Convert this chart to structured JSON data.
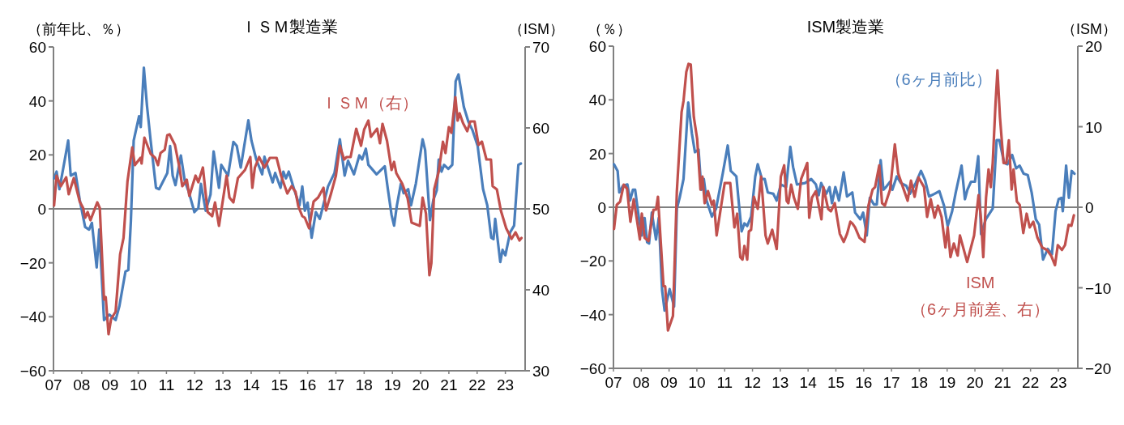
{
  "chart_data": [
    {
      "type": "line",
      "title": "ＩＳＭ製造業",
      "ylabel": "（前年比、％）",
      "y2label": "（ISM）",
      "xlim": [
        2007,
        2023.7
      ],
      "xticks": [
        {
          "value": 2007,
          "label": "07"
        },
        {
          "value": 2008,
          "label": "08"
        },
        {
          "value": 2009,
          "label": "09"
        },
        {
          "value": 2010,
          "label": "10"
        },
        {
          "value": 2011,
          "label": "11"
        },
        {
          "value": 2012,
          "label": "12"
        },
        {
          "value": 2013,
          "label": "13"
        },
        {
          "value": 2014,
          "label": "14"
        },
        {
          "value": 2015,
          "label": "15"
        },
        {
          "value": 2016,
          "label": "16"
        },
        {
          "value": 2017,
          "label": "17"
        },
        {
          "value": 2018,
          "label": "18"
        },
        {
          "value": 2019,
          "label": "19"
        },
        {
          "value": 2020,
          "label": "20"
        },
        {
          "value": 2021,
          "label": "21"
        },
        {
          "value": 2022,
          "label": "22"
        },
        {
          "value": 2023,
          "label": "23"
        }
      ],
      "ylim": [
        -60,
        60
      ],
      "yticks": [
        -60,
        -40,
        -20,
        0,
        20,
        40,
        60
      ],
      "y2lim": [
        30,
        70
      ],
      "y2ticks": [
        30,
        40,
        50,
        60,
        70
      ],
      "ref_lines": [
        {
          "axis": "y",
          "value": 0,
          "color": "#808080"
        }
      ],
      "series": [
        {
          "color": "#4a7ebb",
          "x": [
            2007.02,
            2007.11,
            2007.21,
            2007.35,
            2007.52,
            2007.61,
            2007.78,
            2007.93,
            2008.12,
            2008.26,
            2008.36,
            2008.53,
            2008.62,
            2008.79,
            2008.98,
            2009.2,
            2009.33,
            2009.55,
            2009.65,
            2009.74,
            2009.84,
            2010.03,
            2010.09,
            2010.2,
            2010.31,
            2010.44,
            2010.63,
            2010.74,
            2011.03,
            2011.13,
            2011.22,
            2011.32,
            2011.51,
            2011.65,
            2011.79,
            2011.99,
            2012.13,
            2012.22,
            2012.39,
            2012.56,
            2012.67,
            2012.86,
            2012.94,
            2013.18,
            2013.37,
            2013.49,
            2013.63,
            2013.9,
            2014.01,
            2014.18,
            2014.39,
            2014.47,
            2014.76,
            2014.85,
            2015.04,
            2015.14,
            2015.23,
            2015.33,
            2015.52,
            2015.71,
            2015.81,
            2015.9,
            2016.0,
            2016.14,
            2016.29,
            2016.43,
            2016.72,
            2016.95,
            2017.14,
            2017.31,
            2017.43,
            2017.64,
            2017.83,
            2017.93,
            2018.06,
            2018.15,
            2018.44,
            2018.73,
            2018.84,
            2018.97,
            2019.06,
            2019.16,
            2019.3,
            2019.4,
            2019.56,
            2019.66,
            2019.83,
            2020.07,
            2020.16,
            2020.33,
            2020.45,
            2020.57,
            2020.64,
            2020.74,
            2020.83,
            2020.98,
            2021.12,
            2021.24,
            2021.34,
            2021.53,
            2021.69,
            2021.83,
            2022.02,
            2022.21,
            2022.36,
            2022.5,
            2022.58,
            2022.64,
            2022.82,
            2022.9,
            2023.0,
            2023.17,
            2023.31,
            2023.46,
            2023.55
          ],
          "values": [
            11.3,
            13.8,
            7.3,
            15.3,
            25.3,
            12.3,
            13.3,
            3.3,
            -6.7,
            -7.7,
            -5.2,
            -21.7,
            -7.7,
            -41.2,
            -39.2,
            -41.2,
            -36.2,
            -23.2,
            -22.7,
            -4.7,
            25.3,
            34.3,
            30.3,
            52.3,
            38.3,
            25.3,
            7.8,
            7.3,
            13.3,
            23.3,
            12.3,
            8.8,
            19.8,
            10.3,
            6.3,
            -1.2,
            0.3,
            9.3,
            -0.7,
            5.3,
            21.3,
            7.8,
            16.3,
            12.3,
            24.8,
            23.3,
            15.3,
            32.8,
            25.3,
            18.3,
            12.8,
            19.3,
            9.8,
            13.3,
            7.8,
            13.8,
            11.3,
            13.8,
            7.3,
            1.3,
            8.3,
            -0.7,
            2.3,
            -10.7,
            -1.2,
            -3.7,
            8.3,
            13.3,
            25.8,
            12.3,
            17.8,
            12.8,
            19.8,
            18.3,
            22.3,
            16.3,
            12.8,
            15.8,
            7.3,
            -2.2,
            -6.2,
            1.3,
            9.3,
            5.8,
            7.3,
            1.3,
            9.3,
            25.8,
            21.8,
            -4.2,
            3.3,
            6.8,
            18.3,
            13.8,
            16.3,
            14.8,
            16.3,
            47.3,
            49.8,
            37.8,
            32.3,
            29.3,
            23.3,
            7.3,
            1.3,
            -10.7,
            -11.2,
            -3.7,
            -19.7,
            -15.2,
            -17.2,
            -8.7,
            -6.2,
            16.3,
            16.8
          ]
        },
        {
          "name": "ＩＳＭ（右）",
          "color": "#c0504d",
          "axis": "y2",
          "x": [
            2007.02,
            2007.11,
            2007.26,
            2007.45,
            2007.54,
            2007.72,
            2007.93,
            2008.05,
            2008.12,
            2008.21,
            2008.31,
            2008.55,
            2008.64,
            2008.79,
            2008.85,
            2008.95,
            2009.04,
            2009.2,
            2009.36,
            2009.48,
            2009.62,
            2009.79,
            2009.88,
            2010.08,
            2010.12,
            2010.22,
            2010.44,
            2010.6,
            2010.7,
            2010.79,
            2010.94,
            2011.03,
            2011.11,
            2011.3,
            2011.42,
            2011.46,
            2011.56,
            2011.72,
            2011.81,
            2012.03,
            2012.13,
            2012.29,
            2012.46,
            2012.62,
            2012.72,
            2012.86,
            2013.13,
            2013.23,
            2013.37,
            2013.53,
            2013.78,
            2013.97,
            2014.04,
            2014.13,
            2014.28,
            2014.47,
            2014.66,
            2014.9,
            2015.06,
            2015.28,
            2015.43,
            2015.57,
            2015.67,
            2015.81,
            2015.9,
            2016.05,
            2016.21,
            2016.37,
            2016.56,
            2016.65,
            2016.82,
            2017.0,
            2017.14,
            2017.29,
            2017.38,
            2017.52,
            2017.72,
            2017.89,
            2018.0,
            2018.15,
            2018.24,
            2018.46,
            2018.56,
            2018.65,
            2018.81,
            2018.97,
            2019.06,
            2019.14,
            2019.35,
            2019.54,
            2019.68,
            2019.97,
            2020.07,
            2020.19,
            2020.31,
            2020.38,
            2020.48,
            2020.64,
            2020.79,
            2020.88,
            2021.0,
            2021.09,
            2021.23,
            2021.31,
            2021.38,
            2021.5,
            2021.65,
            2021.76,
            2021.91,
            2022.05,
            2022.17,
            2022.33,
            2022.49,
            2022.55,
            2022.7,
            2022.84,
            2023.03,
            2023.22,
            2023.36,
            2023.5,
            2023.57
          ],
          "values": [
            50.4,
            54.1,
            52.8,
            53.9,
            51.8,
            53.8,
            50.9,
            50.1,
            48.9,
            49.6,
            48.6,
            50.8,
            50.1,
            38.8,
            39.1,
            34.5,
            36.4,
            37.3,
            44.4,
            46.4,
            53.4,
            57.6,
            55.4,
            56.3,
            55.6,
            58.8,
            56.8,
            56.3,
            55.4,
            56.9,
            57.3,
            59.1,
            59.2,
            57.9,
            55.8,
            55.1,
            52.8,
            53.6,
            51.6,
            54.1,
            53.3,
            55.1,
            49.6,
            49.1,
            50.8,
            47.9,
            54.1,
            51.4,
            50.8,
            53.8,
            54.8,
            56.4,
            52.6,
            55.1,
            56.4,
            55.1,
            56.3,
            56.3,
            54.1,
            51.9,
            52.8,
            52.1,
            50.3,
            49.1,
            48.9,
            47.6,
            50.9,
            51.4,
            52.6,
            49.8,
            51.8,
            54.1,
            57.8,
            56.1,
            56.4,
            56.4,
            59.9,
            57.8,
            59.8,
            60.9,
            58.9,
            59.9,
            58.1,
            60.5,
            58.4,
            54.8,
            55.8,
            54.4,
            53.1,
            51.3,
            48.3,
            47.9,
            51.4,
            49.4,
            41.8,
            43.3,
            52.4,
            54.6,
            58.3,
            56.9,
            60.1,
            59.4,
            63.8,
            60.9,
            61.8,
            60.6,
            59.6,
            60.8,
            60.8,
            57.9,
            58.3,
            56.1,
            56.1,
            52.8,
            52.4,
            49.8,
            47.6,
            46.3,
            47.1,
            46.1,
            46.4
          ]
        }
      ]
    },
    {
      "type": "line",
      "title": "ISM製造業",
      "ylabel": "（％）",
      "y2label": "（ISM）",
      "xlim": [
        2007,
        2023.7
      ],
      "xticks": [
        {
          "value": 2007,
          "label": "07"
        },
        {
          "value": 2008,
          "label": "08"
        },
        {
          "value": 2009,
          "label": "09"
        },
        {
          "value": 2010,
          "label": "10"
        },
        {
          "value": 2011,
          "label": "11"
        },
        {
          "value": 2012,
          "label": "12"
        },
        {
          "value": 2013,
          "label": "13"
        },
        {
          "value": 2014,
          "label": "14"
        },
        {
          "value": 2015,
          "label": "15"
        },
        {
          "value": 2016,
          "label": "16"
        },
        {
          "value": 2017,
          "label": "17"
        },
        {
          "value": 2018,
          "label": "18"
        },
        {
          "value": 2019,
          "label": "19"
        },
        {
          "value": 2020,
          "label": "20"
        },
        {
          "value": 2021,
          "label": "21"
        },
        {
          "value": 2022,
          "label": "22"
        },
        {
          "value": 2023,
          "label": "23"
        }
      ],
      "ylim": [
        -60,
        60
      ],
      "yticks": [
        -60,
        -40,
        -20,
        0,
        20,
        40,
        60
      ],
      "y2lim": [
        -20,
        20
      ],
      "y2ticks": [
        -20,
        -10,
        0,
        10,
        20
      ],
      "ref_lines": [
        {
          "axis": "y",
          "value": 0,
          "color": "#808080"
        }
      ],
      "series": [
        {
          "name": "（6ヶ月前比）",
          "color": "#4a7ebb",
          "x": [
            2007.02,
            2007.15,
            2007.21,
            2007.34,
            2007.5,
            2007.6,
            2007.7,
            2007.78,
            2007.92,
            2008.02,
            2008.12,
            2008.21,
            2008.28,
            2008.38,
            2008.53,
            2008.63,
            2008.75,
            2008.84,
            2009.02,
            2009.18,
            2009.28,
            2009.38,
            2009.52,
            2009.69,
            2009.82,
            2009.93,
            2010.06,
            2010.16,
            2010.25,
            2010.35,
            2010.54,
            2010.69,
            2010.93,
            2011.11,
            2011.22,
            2011.42,
            2011.51,
            2011.61,
            2011.71,
            2011.81,
            2011.95,
            2012.1,
            2012.19,
            2012.34,
            2012.44,
            2012.55,
            2012.75,
            2012.87,
            2013.02,
            2013.21,
            2013.36,
            2013.46,
            2013.6,
            2013.89,
            2014.11,
            2014.28,
            2014.38,
            2014.47,
            2014.65,
            2014.77,
            2014.86,
            2014.98,
            2015.11,
            2015.28,
            2015.4,
            2015.59,
            2015.69,
            2015.88,
            2015.98,
            2016.11,
            2016.22,
            2016.37,
            2016.47,
            2016.61,
            2016.71,
            2016.8,
            2016.95,
            2017.03,
            2017.19,
            2017.34,
            2017.53,
            2017.66,
            2017.87,
            2018.06,
            2018.21,
            2018.35,
            2018.55,
            2018.72,
            2018.89,
            2019.02,
            2019.18,
            2019.31,
            2019.52,
            2019.64,
            2019.73,
            2019.86,
            2020.0,
            2020.12,
            2020.22,
            2020.39,
            2020.64,
            2020.78,
            2020.88,
            2021.05,
            2021.17,
            2021.34,
            2021.48,
            2021.61,
            2021.75,
            2021.9,
            2022.04,
            2022.19,
            2022.31,
            2022.45,
            2022.62,
            2022.77,
            2022.9,
            2023.01,
            2023.11,
            2023.16,
            2023.28,
            2023.38,
            2023.48,
            2023.58
          ],
          "values": [
            16.0,
            13.5,
            5.5,
            8.0,
            8.5,
            2.5,
            6.5,
            6.5,
            -4.5,
            -10.5,
            -4.0,
            -13.0,
            -13.5,
            -2.0,
            -12.0,
            -4.0,
            -31.0,
            -38.5,
            -30.5,
            -37.0,
            -0.5,
            3.5,
            10.5,
            39.0,
            27.5,
            20.5,
            21.5,
            6.5,
            10.5,
            2.5,
            -3.5,
            -0.5,
            12.5,
            23.0,
            13.5,
            11.5,
            1.5,
            -9.0,
            -6.0,
            -7.0,
            -3.5,
            11.5,
            16.0,
            10.5,
            10.5,
            5.5,
            5.0,
            2.5,
            8.5,
            7.5,
            22.5,
            15.0,
            8.5,
            9.0,
            10.5,
            8.5,
            4.5,
            9.0,
            5.0,
            7.5,
            1.5,
            7.5,
            2.5,
            13.0,
            4.0,
            5.5,
            -2.0,
            -4.5,
            -2.0,
            -10.5,
            3.5,
            1.0,
            1.0,
            17.5,
            6.5,
            7.5,
            9.5,
            6.5,
            11.5,
            9.0,
            8.0,
            5.0,
            9.0,
            13.5,
            10.0,
            4.0,
            5.0,
            6.0,
            0.5,
            -7.0,
            -1.5,
            5.5,
            15.5,
            3.0,
            6.5,
            9.5,
            9.5,
            19.0,
            -10.0,
            -4.5,
            -0.5,
            25.0,
            25.0,
            16.5,
            16.0,
            19.5,
            14.5,
            15.5,
            12.5,
            12.0,
            5.5,
            -4.5,
            -6.5,
            -19.5,
            -15.5,
            -17.5,
            -1.5,
            3.0,
            3.5,
            -1.5,
            15.5,
            3.5,
            13.5,
            12.5
          ]
        },
        {
          "name": "ISM\n（6ヶ月前差、右）",
          "color": "#c0504d",
          "axis": "y2",
          "x": [
            2007.02,
            2007.12,
            2007.24,
            2007.37,
            2007.49,
            2007.61,
            2007.73,
            2007.95,
            2008.02,
            2008.12,
            2008.26,
            2008.44,
            2008.53,
            2008.6,
            2008.8,
            2008.86,
            2008.96,
            2009.14,
            2009.28,
            2009.45,
            2009.52,
            2009.62,
            2009.7,
            2009.78,
            2009.89,
            2010.01,
            2010.13,
            2010.2,
            2010.28,
            2010.4,
            2010.54,
            2010.61,
            2010.71,
            2010.83,
            2011.0,
            2011.2,
            2011.35,
            2011.45,
            2011.56,
            2011.64,
            2011.71,
            2011.81,
            2011.87,
            2011.95,
            2012.05,
            2012.19,
            2012.31,
            2012.47,
            2012.55,
            2012.71,
            2012.87,
            2013.02,
            2013.14,
            2013.23,
            2013.29,
            2013.39,
            2013.49,
            2013.63,
            2013.75,
            2013.97,
            2014.04,
            2014.14,
            2014.28,
            2014.48,
            2014.55,
            2014.72,
            2014.82,
            2014.96,
            2015.14,
            2015.28,
            2015.4,
            2015.52,
            2015.59,
            2015.69,
            2015.85,
            2016.03,
            2016.17,
            2016.32,
            2016.41,
            2016.56,
            2016.66,
            2016.76,
            2016.95,
            2017.12,
            2017.24,
            2017.44,
            2017.58,
            2017.7,
            2017.83,
            2017.97,
            2018.17,
            2018.28,
            2018.41,
            2018.55,
            2018.67,
            2018.8,
            2018.94,
            2019.02,
            2019.12,
            2019.24,
            2019.38,
            2019.46,
            2019.72,
            2019.97,
            2020.13,
            2020.22,
            2020.3,
            2020.4,
            2020.49,
            2020.57,
            2020.64,
            2020.74,
            2020.81,
            2020.9,
            2021.03,
            2021.13,
            2021.22,
            2021.32,
            2021.39,
            2021.51,
            2021.61,
            2021.74,
            2021.86,
            2021.97,
            2022.1,
            2022.25,
            2022.42,
            2022.59,
            2022.74,
            2022.88,
            2022.98,
            2023.13,
            2023.24,
            2023.37,
            2023.47,
            2023.56
          ],
          "values": [
            -2.7,
            0.3,
            0.7,
            2.8,
            2.3,
            -1.8,
            1.0,
            -4.0,
            -0.8,
            -3.8,
            -4.2,
            -0.3,
            -0.3,
            1.3,
            -9.8,
            -9.8,
            -15.3,
            -13.5,
            2.0,
            11.8,
            13.2,
            16.8,
            17.8,
            17.7,
            11.2,
            8.5,
            2.2,
            3.8,
            0.5,
            2.0,
            0.3,
            0.8,
            -3.5,
            -0.8,
            3.0,
            3.0,
            -2.5,
            -0.8,
            -6.2,
            -6.5,
            -4.8,
            -6.5,
            -3.0,
            -2.8,
            1.3,
            -0.2,
            3.8,
            -3.5,
            -4.5,
            -2.8,
            -5.2,
            3.8,
            5.2,
            0.8,
            0.5,
            2.8,
            1.2,
            -0.2,
            3.5,
            5.5,
            -1.3,
            1.2,
            2.0,
            -1.5,
            2.5,
            -0.2,
            -0.5,
            0.5,
            -3.3,
            -4.3,
            -3.3,
            -1.8,
            -2.0,
            -2.5,
            -3.8,
            -4.3,
            0.2,
            2.2,
            2.5,
            5.2,
            0.5,
            0.2,
            2.2,
            7.8,
            4.2,
            2.2,
            0.8,
            3.3,
            1.3,
            3.7,
            2.5,
            -1.2,
            1.0,
            -1.3,
            0.2,
            -1.2,
            -5.0,
            -2.5,
            -6.2,
            -4.5,
            -6.0,
            -3.5,
            -6.8,
            -3.5,
            1.5,
            -1.5,
            -6.2,
            1.2,
            4.7,
            2.5,
            5.5,
            12.8,
            17.0,
            11.2,
            5.5,
            5.5,
            8.3,
            2.2,
            4.7,
            0.7,
            0.3,
            -3.2,
            -0.8,
            -2.5,
            -1.8,
            -3.8,
            -5.0,
            -5.3,
            -6.0,
            -7.2,
            -4.7,
            -5.3,
            -4.7,
            -2.2,
            -2.3,
            -1.0
          ]
        }
      ]
    }
  ]
}
